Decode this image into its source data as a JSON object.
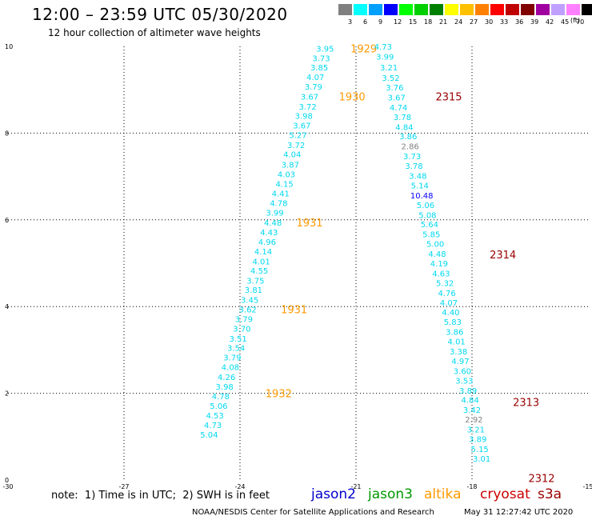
{
  "header": {
    "title": "12:00 – 23:59 UTC 05/30/2020",
    "subtitle": "12 hour collection of altimeter wave heights"
  },
  "color_scale": {
    "swatches": [
      "#808080",
      "#00ffff",
      "#00a0ff",
      "#0000ff",
      "#00ff00",
      "#00d000",
      "#008000",
      "#ffff00",
      "#ffc000",
      "#ff8000",
      "#ff0000",
      "#c00000",
      "#800000",
      "#a000a0",
      "#c0a0ff",
      "#ff80ff",
      "#000000"
    ],
    "labels": [
      "3",
      "6",
      "9",
      "12",
      "15",
      "18",
      "21",
      "24",
      "27",
      "30",
      "33",
      "36",
      "39",
      "42",
      "45",
      "70"
    ],
    "unit": "(ft)"
  },
  "footer": {
    "note": "note:  1) Time is in UTC;  2) SWH is in feet",
    "satellites": [
      {
        "name": "jason2",
        "color": "#0000cc"
      },
      {
        "name": "jason3",
        "color": "#009900"
      },
      {
        "name": "altika",
        "color": "#ff9900"
      },
      {
        "name": "cryosat",
        "color": "#cc0000"
      },
      {
        "name": "s3a",
        "color": "#990000"
      }
    ],
    "credit": "NOAA/NESDIS Center for Satellite Applications and Research",
    "timestamp": "May 31 12:27:42 UTC 2020"
  },
  "chart_data": {
    "type": "scatter",
    "title": "12:00 – 23:59 UTC 05/30/2020",
    "subtitle": "12 hour collection of altimeter wave heights",
    "xlim": [
      -30,
      -15
    ],
    "ylim": [
      0,
      10
    ],
    "x_ticks": [
      -30,
      -27,
      -24,
      -21,
      -18,
      -15
    ],
    "y_ticks": [
      0,
      2,
      4,
      6,
      8,
      10
    ],
    "x_tick_labels": [
      "-30",
      "-27",
      "-24",
      "-21",
      "-18",
      "-15"
    ],
    "y_tick_labels": [
      "0",
      "2",
      "4",
      "6",
      "8",
      "10"
    ],
    "grid": true,
    "point_color": "#00d8f0",
    "series": [
      {
        "name": "altika",
        "color": "#00d8f0",
        "points": [
          {
            "x": -21.8,
            "y": 9.95,
            "label": "3.95"
          },
          {
            "x": -21.9,
            "y": 9.73,
            "label": "3.73"
          },
          {
            "x": -21.95,
            "y": 9.52,
            "label": "3.85"
          },
          {
            "x": -22.05,
            "y": 9.3,
            "label": "4.07"
          },
          {
            "x": -22.1,
            "y": 9.08,
            "label": "3.79"
          },
          {
            "x": -22.2,
            "y": 8.85,
            "label": "3.67"
          },
          {
            "x": -22.25,
            "y": 8.62,
            "label": "3.72"
          },
          {
            "x": -22.35,
            "y": 8.4,
            "label": "3.98"
          },
          {
            "x": -22.4,
            "y": 8.18,
            "label": "3.67"
          },
          {
            "x": -22.5,
            "y": 7.96,
            "label": "5.27"
          },
          {
            "x": -22.55,
            "y": 7.73,
            "label": "3.72"
          },
          {
            "x": -22.65,
            "y": 7.52,
            "label": "4.04"
          },
          {
            "x": -22.7,
            "y": 7.28,
            "label": "3.87"
          },
          {
            "x": -22.8,
            "y": 7.06,
            "label": "4.03"
          },
          {
            "x": -22.85,
            "y": 6.84,
            "label": "4.15"
          },
          {
            "x": -22.95,
            "y": 6.61,
            "label": "4.41"
          },
          {
            "x": -23.0,
            "y": 6.39,
            "label": "4.78"
          },
          {
            "x": -23.1,
            "y": 6.17,
            "label": "3.99"
          },
          {
            "x": -23.15,
            "y": 5.94,
            "label": "4.48"
          },
          {
            "x": -23.25,
            "y": 5.72,
            "label": "4.43"
          },
          {
            "x": -23.3,
            "y": 5.5,
            "label": "4.96"
          },
          {
            "x": -23.4,
            "y": 5.28,
            "label": "4.14"
          },
          {
            "x": -23.45,
            "y": 5.05,
            "label": "4.01"
          },
          {
            "x": -23.5,
            "y": 4.83,
            "label": "4.55"
          },
          {
            "x": -23.6,
            "y": 4.6,
            "label": "3.75"
          },
          {
            "x": -23.65,
            "y": 4.39,
            "label": "3.81"
          },
          {
            "x": -23.75,
            "y": 4.16,
            "label": "3.45"
          },
          {
            "x": -23.8,
            "y": 3.94,
            "label": "3.62"
          },
          {
            "x": -23.9,
            "y": 3.72,
            "label": "3.79"
          },
          {
            "x": -23.95,
            "y": 3.5,
            "label": "3.70"
          },
          {
            "x": -24.05,
            "y": 3.27,
            "label": "3.51"
          },
          {
            "x": -24.1,
            "y": 3.05,
            "label": "3.54"
          },
          {
            "x": -24.2,
            "y": 2.83,
            "label": "3.79"
          },
          {
            "x": -24.25,
            "y": 2.61,
            "label": "4.08"
          },
          {
            "x": -24.35,
            "y": 2.38,
            "label": "4.26"
          },
          {
            "x": -24.4,
            "y": 2.16,
            "label": "3.98"
          },
          {
            "x": -24.5,
            "y": 1.94,
            "label": "4.78"
          },
          {
            "x": -24.55,
            "y": 1.72,
            "label": "5.06"
          },
          {
            "x": -24.65,
            "y": 1.49,
            "label": "4.53"
          },
          {
            "x": -24.7,
            "y": 1.27,
            "label": "4.73"
          },
          {
            "x": -24.8,
            "y": 1.05,
            "label": "5.04"
          }
        ],
        "time_labels": [
          {
            "x": -20.8,
            "y": 9.95,
            "label": "1929"
          },
          {
            "x": -21.1,
            "y": 8.85,
            "label": "1930"
          },
          {
            "x": -22.2,
            "y": 5.94,
            "label": "1931"
          },
          {
            "x": -22.6,
            "y": 3.94,
            "label": "1931"
          },
          {
            "x": -23.0,
            "y": 2.0,
            "label": "1932"
          }
        ]
      },
      {
        "name": "cryosat",
        "color": "#00d8f0",
        "points": [
          {
            "x": -20.3,
            "y": 10.0,
            "label": "4.73"
          },
          {
            "x": -20.25,
            "y": 9.77,
            "label": "3.99"
          },
          {
            "x": -20.15,
            "y": 9.52,
            "label": "3.21"
          },
          {
            "x": -20.1,
            "y": 9.28,
            "label": "3.52"
          },
          {
            "x": -20.0,
            "y": 9.06,
            "label": "3.76"
          },
          {
            "x": -19.95,
            "y": 8.83,
            "label": "3.67"
          },
          {
            "x": -19.9,
            "y": 8.6,
            "label": "4.74"
          },
          {
            "x": -19.8,
            "y": 8.38,
            "label": "3.78"
          },
          {
            "x": -19.75,
            "y": 8.15,
            "label": "4.84"
          },
          {
            "x": -19.65,
            "y": 7.93,
            "label": "3.86"
          },
          {
            "x": -19.6,
            "y": 7.7,
            "label": "2.86",
            "color": "#808080"
          },
          {
            "x": -19.55,
            "y": 7.47,
            "label": "3.73"
          },
          {
            "x": -19.5,
            "y": 7.25,
            "label": "3.78"
          },
          {
            "x": -19.4,
            "y": 7.02,
            "label": "3.48"
          },
          {
            "x": -19.35,
            "y": 6.8,
            "label": "5.14"
          },
          {
            "x": -19.3,
            "y": 6.57,
            "label": "10.48",
            "color": "#0000ff"
          },
          {
            "x": -19.2,
            "y": 6.35,
            "label": "5.06"
          },
          {
            "x": -19.15,
            "y": 6.12,
            "label": "5.08"
          },
          {
            "x": -19.1,
            "y": 5.9,
            "label": "5.64"
          },
          {
            "x": -19.05,
            "y": 5.67,
            "label": "5.85"
          },
          {
            "x": -18.95,
            "y": 5.45,
            "label": "5.00"
          },
          {
            "x": -18.9,
            "y": 5.22,
            "label": "4.48"
          },
          {
            "x": -18.85,
            "y": 5.0,
            "label": "4.19"
          },
          {
            "x": -18.8,
            "y": 4.77,
            "label": "4.63"
          },
          {
            "x": -18.7,
            "y": 4.55,
            "label": "5.32"
          },
          {
            "x": -18.65,
            "y": 4.32,
            "label": "4.76"
          },
          {
            "x": -18.6,
            "y": 4.1,
            "label": "4.07"
          },
          {
            "x": -18.55,
            "y": 3.87,
            "label": "4.40"
          },
          {
            "x": -18.5,
            "y": 3.65,
            "label": "5.83"
          },
          {
            "x": -18.45,
            "y": 3.42,
            "label": "3.86"
          },
          {
            "x": -18.4,
            "y": 3.2,
            "label": "4.01"
          },
          {
            "x": -18.35,
            "y": 2.97,
            "label": "3.38"
          },
          {
            "x": -18.3,
            "y": 2.75,
            "label": "4.97"
          },
          {
            "x": -18.25,
            "y": 2.52,
            "label": "3.60"
          },
          {
            "x": -18.2,
            "y": 2.3,
            "label": "3.53"
          },
          {
            "x": -18.1,
            "y": 2.07,
            "label": "3.89"
          },
          {
            "x": -18.05,
            "y": 1.85,
            "label": "4.84"
          },
          {
            "x": -18.0,
            "y": 1.62,
            "label": "3.42"
          },
          {
            "x": -17.95,
            "y": 1.4,
            "label": "2.92",
            "color": "#808080"
          },
          {
            "x": -17.9,
            "y": 1.17,
            "label": "3.21"
          },
          {
            "x": -17.85,
            "y": 0.95,
            "label": "3.89"
          },
          {
            "x": -17.8,
            "y": 0.72,
            "label": "5.15"
          },
          {
            "x": -17.75,
            "y": 0.5,
            "label": "3.01"
          }
        ],
        "time_labels": [
          {
            "x": -18.6,
            "y": 8.85,
            "label": "2315"
          },
          {
            "x": -17.2,
            "y": 5.2,
            "label": "2314"
          },
          {
            "x": -16.6,
            "y": 1.8,
            "label": "2313"
          },
          {
            "x": -16.2,
            "y": 0.05,
            "label": "2312"
          }
        ]
      }
    ]
  }
}
